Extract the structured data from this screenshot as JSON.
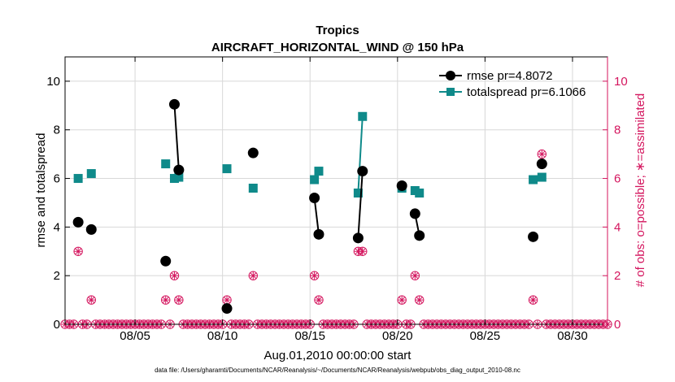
{
  "chart_data": {
    "type": "line",
    "title": "Tropics",
    "subtitle": "AIRCRAFT_HORIZONTAL_WIND @ 150 hPa",
    "xlabel": "Aug.01,2010 00:00:00 start",
    "ylabel": "rmse and totalspread",
    "y2label": "# of obs: o=possible; ∗=assimilated",
    "footnote": "data file: /Users/gharamti/Documents/NCAR/Reanalysis/~/Documents/NCAR/Reanalysis/webpub/obs_diag_output_2010-08.nc",
    "xlim": [
      1,
      32
    ],
    "ylim": [
      0,
      11
    ],
    "y2lim": [
      0,
      11
    ],
    "xticks": [
      {
        "day": 5,
        "label": "08/05"
      },
      {
        "day": 10,
        "label": "08/10"
      },
      {
        "day": 15,
        "label": "08/15"
      },
      {
        "day": 20,
        "label": "08/20"
      },
      {
        "day": 25,
        "label": "08/25"
      },
      {
        "day": 30,
        "label": "08/30"
      }
    ],
    "yticks": [
      "0",
      "2",
      "4",
      "6",
      "8",
      "10"
    ],
    "y2ticks": [
      "0",
      "2",
      "4",
      "6",
      "8",
      "10"
    ],
    "grid": true,
    "legend_position": "top-right",
    "colors": {
      "rmse": "#000000",
      "spread": "#0f8a8a",
      "obs": "#d4155e",
      "grid": "#d8d8d8"
    },
    "series": [
      {
        "name": "rmse",
        "legend": "rmse pr=4.8072",
        "segments": [
          [
            [
              1.75,
              4.2
            ]
          ],
          [
            [
              2.5,
              3.9
            ]
          ],
          [
            [
              6.75,
              2.6
            ]
          ],
          [
            [
              7.25,
              9.05
            ],
            [
              7.5,
              6.35
            ]
          ],
          [
            [
              10.25,
              0.65
            ]
          ],
          [
            [
              11.75,
              7.05
            ]
          ],
          [
            [
              15.25,
              5.2
            ],
            [
              15.5,
              3.7
            ]
          ],
          [
            [
              17.75,
              3.55
            ],
            [
              18.0,
              6.3
            ]
          ],
          [
            [
              20.25,
              5.7
            ]
          ],
          [
            [
              21.0,
              4.55
            ],
            [
              21.25,
              3.65
            ]
          ],
          [
            [
              27.75,
              3.6
            ]
          ],
          [
            [
              28.25,
              6.6
            ]
          ]
        ]
      },
      {
        "name": "totalspread",
        "legend": "totalspread pr=6.1066",
        "segments": [
          [
            [
              1.75,
              6.0
            ]
          ],
          [
            [
              2.5,
              6.2
            ]
          ],
          [
            [
              6.75,
              6.6
            ]
          ],
          [
            [
              7.25,
              6.0
            ],
            [
              7.5,
              6.05
            ]
          ],
          [
            [
              10.25,
              6.4
            ]
          ],
          [
            [
              11.75,
              5.6
            ]
          ],
          [
            [
              15.25,
              5.95
            ],
            [
              15.5,
              6.3
            ]
          ],
          [
            [
              17.75,
              5.4
            ],
            [
              18.0,
              8.55
            ]
          ],
          [
            [
              20.25,
              5.6
            ]
          ],
          [
            [
              21.0,
              5.5
            ],
            [
              21.25,
              5.4
            ]
          ],
          [
            [
              27.75,
              5.95
            ]
          ],
          [
            [
              28.25,
              6.05
            ]
          ]
        ]
      }
    ],
    "obs_possible_nonzero": [
      [
        1.75,
        3
      ],
      [
        2.5,
        1
      ],
      [
        6.75,
        1
      ],
      [
        7.25,
        2
      ],
      [
        7.5,
        1
      ],
      [
        10.25,
        1
      ],
      [
        11.75,
        2
      ],
      [
        15.25,
        2
      ],
      [
        15.5,
        1
      ],
      [
        17.75,
        3
      ],
      [
        18.0,
        3
      ],
      [
        20.25,
        1
      ],
      [
        21.0,
        2
      ],
      [
        21.25,
        1
      ],
      [
        27.75,
        1
      ],
      [
        28.25,
        7
      ]
    ],
    "obs_assimilated_nonzero": [
      [
        1.75,
        3
      ],
      [
        2.5,
        1
      ],
      [
        6.75,
        1
      ],
      [
        7.25,
        2
      ],
      [
        7.5,
        1
      ],
      [
        10.25,
        1
      ],
      [
        11.75,
        2
      ],
      [
        15.25,
        2
      ],
      [
        15.5,
        1
      ],
      [
        17.75,
        3
      ],
      [
        18.0,
        3
      ],
      [
        20.25,
        1
      ],
      [
        21.0,
        2
      ],
      [
        21.25,
        1
      ],
      [
        27.75,
        1
      ],
      [
        28.25,
        7
      ]
    ],
    "obs_time_step_days": 0.25
  }
}
